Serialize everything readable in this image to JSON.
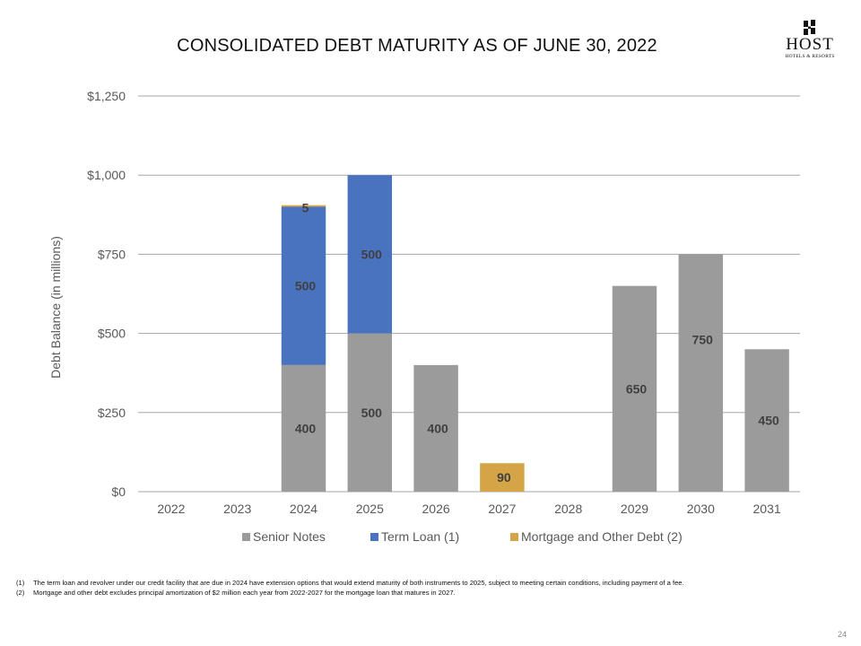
{
  "title": "CONSOLIDATED DEBT MATURITY AS OF JUNE 30, 2022",
  "logo": {
    "word": "HOST",
    "sub": "HOTELS & RESORTS"
  },
  "footnotes": [
    {
      "num": "(1)",
      "text": "The term loan and revolver under our credit facility that are due in 2024 have extension options that would extend maturity of both instruments to 2025, subject to meeting certain conditions, including payment of a fee."
    },
    {
      "num": "(2)",
      "text": "Mortgage and other debt excludes principal amortization of $2 million each year from 2022-2027 for the mortgage loan that matures in 2027."
    }
  ],
  "page_number": "24",
  "chart_data": {
    "type": "bar",
    "stacked": true,
    "title": "",
    "xlabel": "",
    "ylabel": "Debt Balance (in millions)",
    "ylim": [
      0,
      1250
    ],
    "yticks": [
      0,
      250,
      500,
      750,
      1000,
      1250
    ],
    "ytick_labels": [
      "$0",
      "$250",
      "$500",
      "$750",
      "$1,000",
      "$1,250"
    ],
    "grid": true,
    "legend": "bottom",
    "categories": [
      "2022",
      "2023",
      "2024",
      "2025",
      "2026",
      "2027",
      "2028",
      "2029",
      "2030",
      "2031"
    ],
    "series": [
      {
        "name": "Senior Notes",
        "color": "#9b9b9b",
        "values": [
          0,
          0,
          400,
          500,
          400,
          0,
          0,
          650,
          750,
          450
        ]
      },
      {
        "name": "Term Loan (1)",
        "color": "#4a73bf",
        "values": [
          0,
          0,
          500,
          500,
          0,
          0,
          0,
          0,
          0,
          0
        ]
      },
      {
        "name": "Mortgage and Other Debt (2)",
        "color": "#d5a447",
        "values": [
          0,
          0,
          5,
          0,
          0,
          90,
          0,
          0,
          0,
          0
        ]
      }
    ]
  }
}
